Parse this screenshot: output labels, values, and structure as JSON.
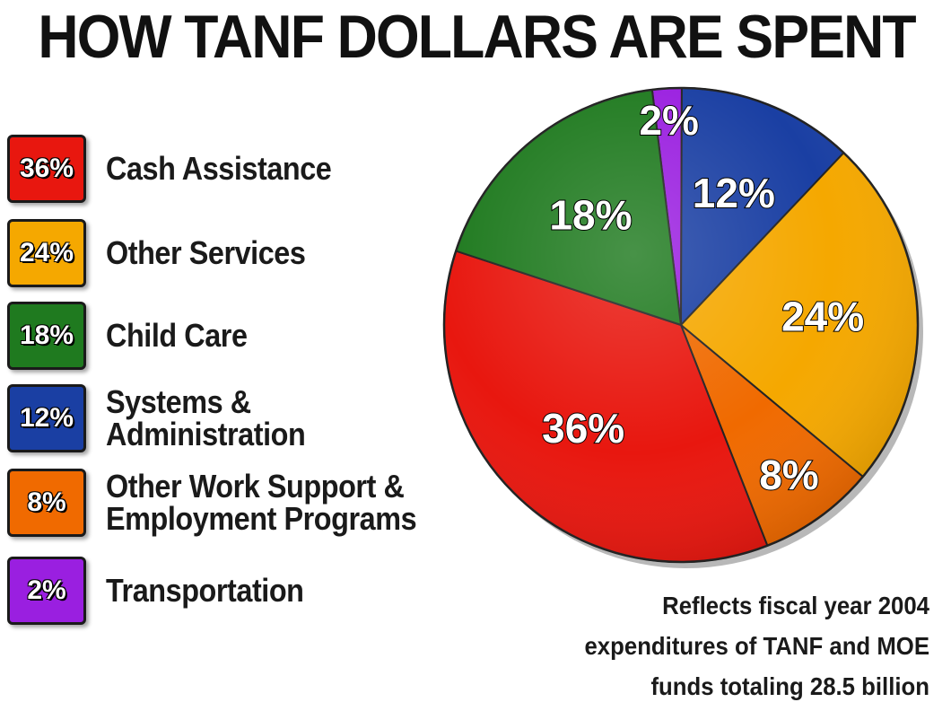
{
  "chart_data": {
    "type": "pie",
    "title": "HOW TANF DOLLARS ARE SPENT",
    "slices": [
      {
        "label": "Cash Assistance",
        "value": 36,
        "pct_label": "36%",
        "color": "#e8170f"
      },
      {
        "label": "Other Services",
        "value": 24,
        "pct_label": "24%",
        "color": "#f5a800"
      },
      {
        "label": "Child Care",
        "value": 18,
        "pct_label": "18%",
        "color": "#1f7a1f"
      },
      {
        "label": "Systems &\nAdministration",
        "value": 12,
        "pct_label": "12%",
        "color": "#1a3fa3"
      },
      {
        "label": "Other Work Support &\nEmployment Programs",
        "value": 8,
        "pct_label": "8%",
        "color": "#f06a00"
      },
      {
        "label": "Transportation",
        "value": 2,
        "pct_label": "2%",
        "color": "#9a1fe0"
      }
    ],
    "pie_order": [
      "Transportation",
      "Systems &\nAdministration",
      "Other Services",
      "Other Work Support &\nEmployment Programs",
      "Cash Assistance",
      "Child Care"
    ],
    "legend_position": "left",
    "note": [
      "Reflects fiscal year 2004",
      "expenditures of TANF and MOE",
      "funds totaling 28.5 billion"
    ]
  }
}
